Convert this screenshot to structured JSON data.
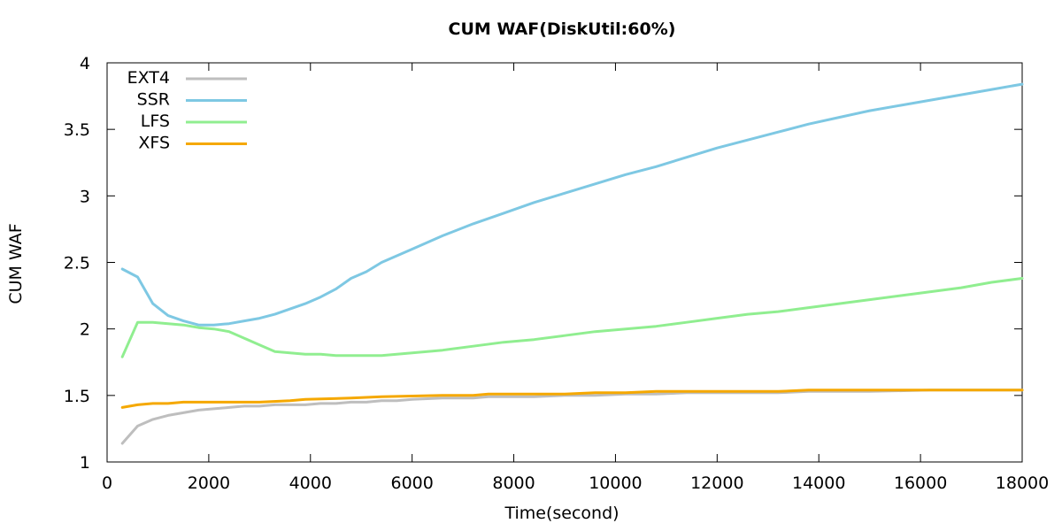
{
  "chart_data": {
    "type": "line",
    "title": "CUM WAF(DiskUtil:60%)",
    "xlabel": "Time(second)",
    "ylabel": "CUM WAF",
    "xlim": [
      0,
      18000
    ],
    "ylim": [
      1,
      4
    ],
    "x_ticks": [
      "0",
      "2000",
      "4000",
      "6000",
      "8000",
      "10000",
      "12000",
      "14000",
      "16000",
      "18000"
    ],
    "y_ticks": [
      "1",
      "1.5",
      "2",
      "2.5",
      "3",
      "3.5",
      "4"
    ],
    "grid": false,
    "legend_position": "top-left",
    "series": [
      {
        "name": "EXT4",
        "color": "#bebebe",
        "points": [
          [
            300,
            1.14
          ],
          [
            600,
            1.27
          ],
          [
            900,
            1.32
          ],
          [
            1200,
            1.35
          ],
          [
            1500,
            1.37
          ],
          [
            1800,
            1.39
          ],
          [
            2100,
            1.4
          ],
          [
            2400,
            1.41
          ],
          [
            2700,
            1.42
          ],
          [
            3000,
            1.42
          ],
          [
            3300,
            1.43
          ],
          [
            3600,
            1.43
          ],
          [
            3900,
            1.43
          ],
          [
            4200,
            1.44
          ],
          [
            4500,
            1.44
          ],
          [
            4800,
            1.45
          ],
          [
            5100,
            1.45
          ],
          [
            5400,
            1.46
          ],
          [
            5700,
            1.46
          ],
          [
            6000,
            1.47
          ],
          [
            6600,
            1.48
          ],
          [
            7200,
            1.48
          ],
          [
            7500,
            1.49
          ],
          [
            8400,
            1.49
          ],
          [
            9000,
            1.5
          ],
          [
            9600,
            1.5
          ],
          [
            10200,
            1.51
          ],
          [
            10800,
            1.51
          ],
          [
            11400,
            1.52
          ],
          [
            12000,
            1.52
          ],
          [
            13200,
            1.52
          ],
          [
            13800,
            1.53
          ],
          [
            15000,
            1.53
          ],
          [
            16200,
            1.54
          ],
          [
            18000,
            1.54
          ]
        ]
      },
      {
        "name": "SSR",
        "color": "#7ec8e3",
        "points": [
          [
            300,
            2.45
          ],
          [
            600,
            2.39
          ],
          [
            900,
            2.19
          ],
          [
            1200,
            2.1
          ],
          [
            1500,
            2.06
          ],
          [
            1800,
            2.03
          ],
          [
            2100,
            2.03
          ],
          [
            2400,
            2.04
          ],
          [
            2700,
            2.06
          ],
          [
            3000,
            2.08
          ],
          [
            3300,
            2.11
          ],
          [
            3600,
            2.15
          ],
          [
            3900,
            2.19
          ],
          [
            4200,
            2.24
          ],
          [
            4500,
            2.3
          ],
          [
            4800,
            2.38
          ],
          [
            5100,
            2.43
          ],
          [
            5400,
            2.5
          ],
          [
            6000,
            2.6
          ],
          [
            6600,
            2.7
          ],
          [
            7200,
            2.79
          ],
          [
            7800,
            2.87
          ],
          [
            8400,
            2.95
          ],
          [
            9000,
            3.02
          ],
          [
            9600,
            3.09
          ],
          [
            10200,
            3.16
          ],
          [
            10800,
            3.22
          ],
          [
            11400,
            3.29
          ],
          [
            12000,
            3.36
          ],
          [
            12600,
            3.42
          ],
          [
            13200,
            3.48
          ],
          [
            13800,
            3.54
          ],
          [
            14400,
            3.59
          ],
          [
            15000,
            3.64
          ],
          [
            15600,
            3.68
          ],
          [
            16200,
            3.72
          ],
          [
            16800,
            3.76
          ],
          [
            17400,
            3.8
          ],
          [
            18000,
            3.84
          ]
        ]
      },
      {
        "name": "LFS",
        "color": "#90ee90",
        "points": [
          [
            300,
            1.79
          ],
          [
            600,
            2.05
          ],
          [
            900,
            2.05
          ],
          [
            1200,
            2.04
          ],
          [
            1500,
            2.03
          ],
          [
            1800,
            2.01
          ],
          [
            2100,
            2.0
          ],
          [
            2400,
            1.98
          ],
          [
            2700,
            1.93
          ],
          [
            3000,
            1.88
          ],
          [
            3300,
            1.83
          ],
          [
            3600,
            1.82
          ],
          [
            3900,
            1.81
          ],
          [
            4200,
            1.81
          ],
          [
            4500,
            1.8
          ],
          [
            4800,
            1.8
          ],
          [
            5100,
            1.8
          ],
          [
            5400,
            1.8
          ],
          [
            6000,
            1.82
          ],
          [
            6600,
            1.84
          ],
          [
            7200,
            1.87
          ],
          [
            7800,
            1.9
          ],
          [
            8400,
            1.92
          ],
          [
            9000,
            1.95
          ],
          [
            9600,
            1.98
          ],
          [
            10200,
            2.0
          ],
          [
            10800,
            2.02
          ],
          [
            11400,
            2.05
          ],
          [
            12000,
            2.08
          ],
          [
            12600,
            2.11
          ],
          [
            13200,
            2.13
          ],
          [
            13800,
            2.16
          ],
          [
            14400,
            2.19
          ],
          [
            15000,
            2.22
          ],
          [
            15600,
            2.25
          ],
          [
            16200,
            2.28
          ],
          [
            16800,
            2.31
          ],
          [
            17400,
            2.35
          ],
          [
            18000,
            2.38
          ]
        ]
      },
      {
        "name": "XFS",
        "color": "#f5a800",
        "points": [
          [
            300,
            1.41
          ],
          [
            600,
            1.43
          ],
          [
            900,
            1.44
          ],
          [
            1200,
            1.44
          ],
          [
            1500,
            1.45
          ],
          [
            2100,
            1.45
          ],
          [
            3000,
            1.45
          ],
          [
            3600,
            1.46
          ],
          [
            3900,
            1.47
          ],
          [
            4800,
            1.48
          ],
          [
            5400,
            1.49
          ],
          [
            6600,
            1.5
          ],
          [
            7200,
            1.5
          ],
          [
            7500,
            1.51
          ],
          [
            8400,
            1.51
          ],
          [
            9000,
            1.51
          ],
          [
            9600,
            1.52
          ],
          [
            10200,
            1.52
          ],
          [
            10800,
            1.53
          ],
          [
            12000,
            1.53
          ],
          [
            13200,
            1.53
          ],
          [
            13800,
            1.54
          ],
          [
            15000,
            1.54
          ],
          [
            16200,
            1.54
          ],
          [
            18000,
            1.54
          ]
        ]
      }
    ]
  }
}
